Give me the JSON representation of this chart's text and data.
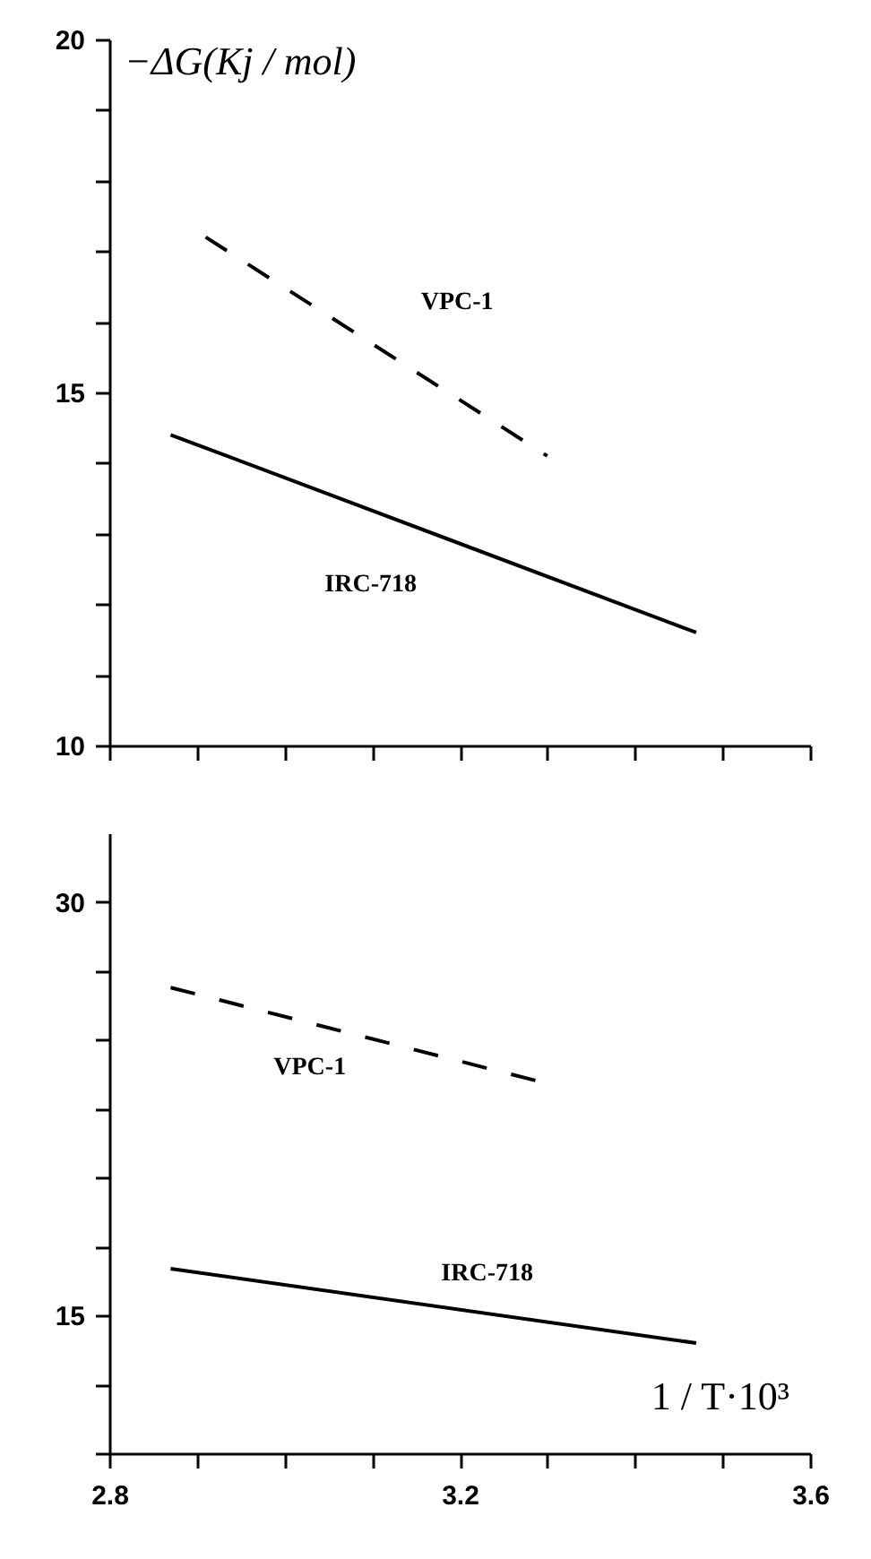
{
  "chart_data": [
    {
      "type": "line",
      "ylabel": "−ΔG(Kj / mol)",
      "xlim": [
        2.8,
        3.6
      ],
      "ylim": [
        10,
        20
      ],
      "xticks": [
        {
          "value": 2.8,
          "label": null
        },
        {
          "value": 2.9,
          "label": null
        },
        {
          "value": 3.0,
          "label": null
        },
        {
          "value": 3.1,
          "label": null
        },
        {
          "value": 3.2,
          "label": null
        },
        {
          "value": 3.3,
          "label": null
        },
        {
          "value": 3.4,
          "label": null
        },
        {
          "value": 3.5,
          "label": null
        },
        {
          "value": 3.6,
          "label": null
        }
      ],
      "yticks": [
        10,
        {
          "value": 11,
          "label": null
        },
        {
          "value": 12,
          "label": null
        },
        {
          "value": 13,
          "label": null
        },
        {
          "value": 14,
          "label": null
        },
        15,
        {
          "value": 16,
          "label": null
        },
        {
          "value": 17,
          "label": null
        },
        {
          "value": 18,
          "label": null
        },
        {
          "value": 19,
          "label": null
        },
        20
      ],
      "tick_labels": "y",
      "grid": false,
      "series": [
        {
          "name": "VPC-1",
          "color": "#000000",
          "line_style": "dashed",
          "x": [
            2.91,
            3.3
          ],
          "values": [
            17.2,
            14.1
          ]
        },
        {
          "name": "IRC-718",
          "color": "#000000",
          "line_style": "solid",
          "x": [
            2.87,
            3.47
          ],
          "values": [
            14.4,
            11.6
          ]
        }
      ]
    },
    {
      "type": "line",
      "xlabel": "1 / T·10³",
      "xlim": [
        2.8,
        3.6
      ],
      "ylim": [
        10,
        32.5
      ],
      "xticks": [
        2.8,
        {
          "value": 2.9,
          "label": null
        },
        {
          "value": 3.0,
          "label": null
        },
        {
          "value": 3.1,
          "label": null
        },
        3.2,
        {
          "value": 3.3,
          "label": null
        },
        {
          "value": 3.4,
          "label": null
        },
        {
          "value": 3.5,
          "label": null
        },
        3.6
      ],
      "yticks": [
        {
          "value": 10,
          "label": null
        },
        {
          "value": 12.5,
          "label": null
        },
        15,
        {
          "value": 17.5,
          "label": null
        },
        {
          "value": 20,
          "label": null
        },
        {
          "value": 22.5,
          "label": null
        },
        {
          "value": 25,
          "label": null
        },
        {
          "value": 27.5,
          "label": null
        },
        30
      ],
      "grid": false,
      "series": [
        {
          "name": "VPC-1",
          "color": "#000000",
          "line_style": "dashed",
          "x": [
            2.87,
            3.29
          ],
          "values": [
            26.9,
            23.5
          ]
        },
        {
          "name": "IRC-718",
          "color": "#000000",
          "line_style": "solid",
          "x": [
            2.87,
            3.47
          ],
          "values": [
            16.7,
            14.0
          ]
        }
      ]
    }
  ]
}
